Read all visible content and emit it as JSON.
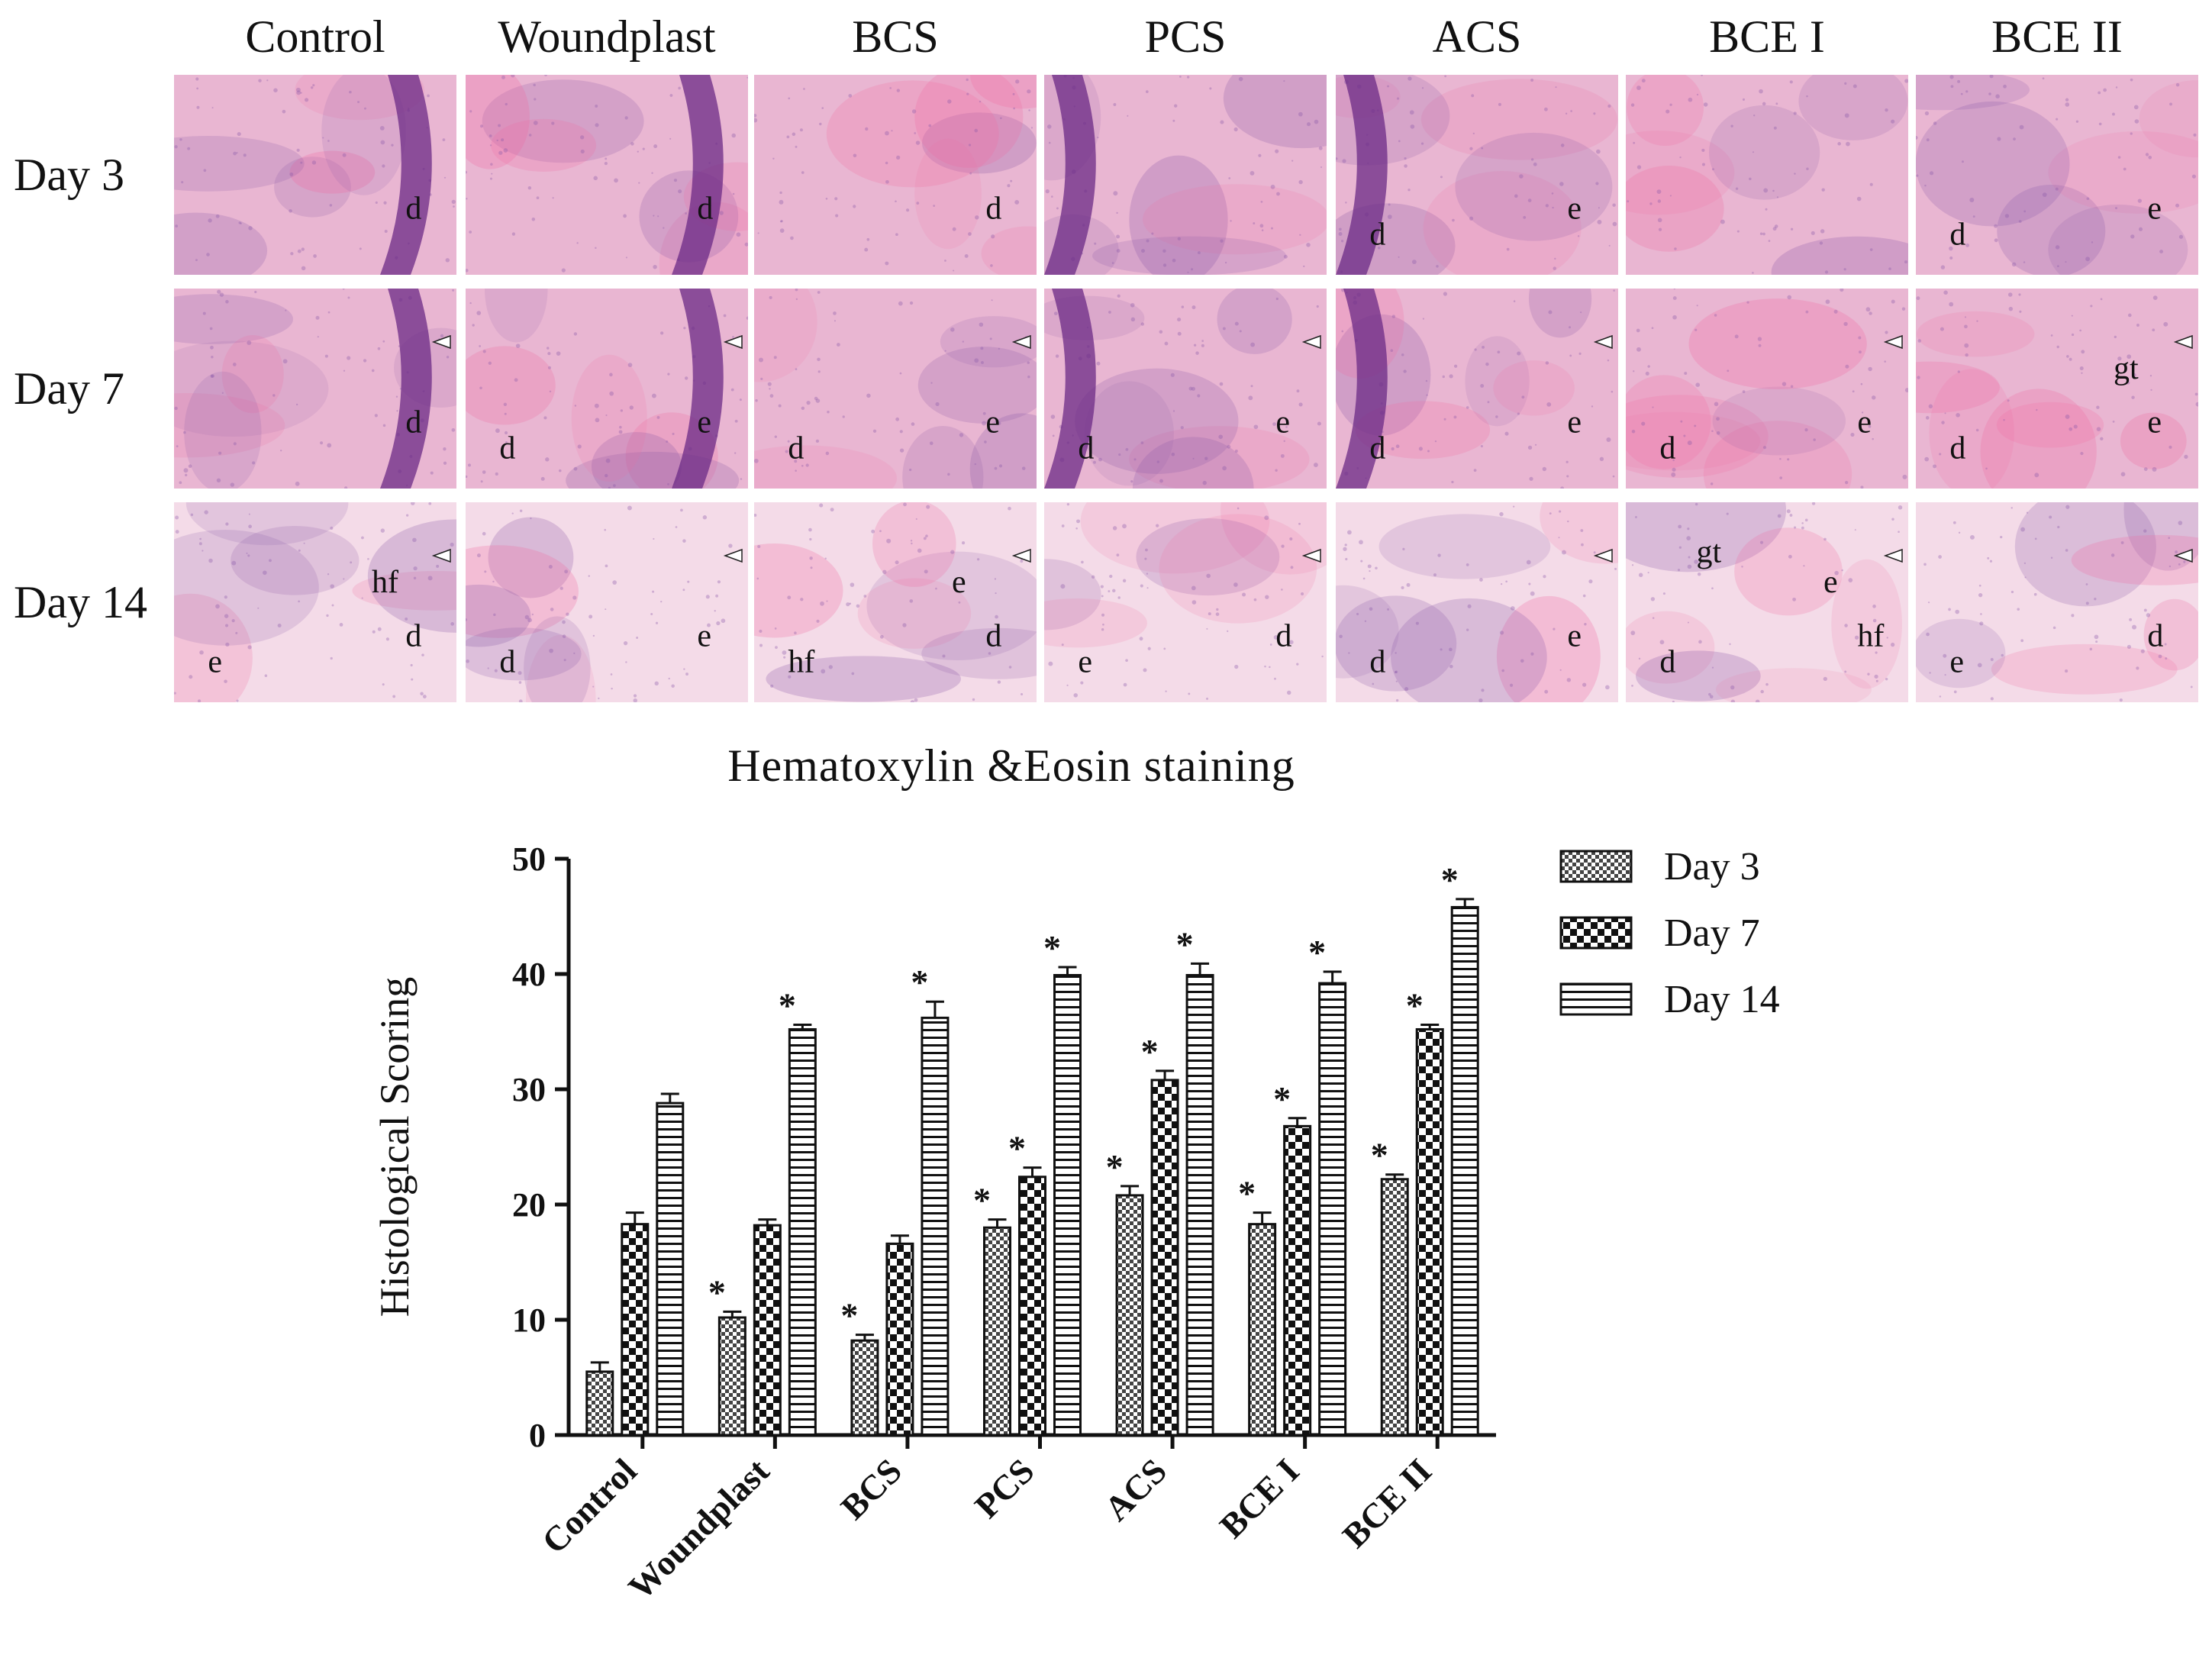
{
  "figure": {
    "columns": [
      "Control",
      "Woundplast",
      "BCS",
      "PCS",
      "ACS",
      "BCE I",
      "BCE II"
    ],
    "rows": [
      "Day 3",
      "Day 7",
      "Day 14"
    ],
    "panel_labels": [
      [
        [
          "d"
        ],
        [
          "d"
        ],
        [
          "d"
        ],
        [],
        [
          "e",
          "d"
        ],
        [],
        [
          "e",
          "d"
        ]
      ],
      [
        [
          "d"
        ],
        [
          "e",
          "d"
        ],
        [
          "e",
          "d"
        ],
        [
          "e",
          "d"
        ],
        [
          "e",
          "d"
        ],
        [
          "e",
          "d"
        ],
        [
          "e",
          "d",
          "gt"
        ]
      ],
      [
        [
          "d",
          "e",
          "hf"
        ],
        [
          "e",
          "d"
        ],
        [
          "d",
          "hf",
          "e"
        ],
        [
          "d",
          "e"
        ],
        [
          "e",
          "d"
        ],
        [
          "hf",
          "d",
          "e",
          "gt"
        ],
        [
          "d",
          "e"
        ]
      ]
    ],
    "stain_colors": {
      "tissue_base": "#e9b6d2",
      "tissue_light": "#f4dbe8",
      "epidermis_dark": "#6b2a86",
      "eosin_bright": "#f06aa0",
      "nuclei": "#8a5aa8"
    }
  },
  "chart_data": {
    "type": "bar",
    "title": "Hematoxylin &Eosin staining",
    "xlabel": "",
    "ylabel": "Histological Scoring",
    "ylim": [
      0,
      50
    ],
    "yticks": [
      0,
      10,
      20,
      30,
      40,
      50
    ],
    "categories": [
      "Control",
      "Woundplast",
      "BCS",
      "PCS",
      "ACS",
      "BCE I",
      "BCE II"
    ],
    "series": [
      {
        "name": "Day 3",
        "pattern": "checker-small",
        "values": [
          5.5,
          10.2,
          8.2,
          18.0,
          20.8,
          18.3,
          22.2
        ],
        "errors": [
          0.8,
          0.5,
          0.5,
          0.7,
          0.8,
          1.0,
          0.4
        ],
        "significant": [
          false,
          true,
          true,
          true,
          true,
          true,
          true
        ]
      },
      {
        "name": "Day 7",
        "pattern": "checker-large",
        "values": [
          18.3,
          18.2,
          16.6,
          22.4,
          30.8,
          26.8,
          35.2
        ],
        "errors": [
          1.0,
          0.5,
          0.7,
          0.8,
          0.8,
          0.7,
          0.4
        ],
        "significant": [
          false,
          false,
          false,
          true,
          true,
          true,
          true
        ]
      },
      {
        "name": "Day 14",
        "pattern": "horizontal-lines",
        "values": [
          28.8,
          35.2,
          36.2,
          39.9,
          39.9,
          39.2,
          45.8
        ],
        "errors": [
          0.8,
          0.4,
          1.4,
          0.7,
          1.0,
          1.0,
          0.7
        ],
        "significant": [
          false,
          true,
          true,
          true,
          true,
          true,
          true
        ]
      }
    ],
    "significance_marker": "*",
    "legend_position": "right",
    "grid": false
  }
}
